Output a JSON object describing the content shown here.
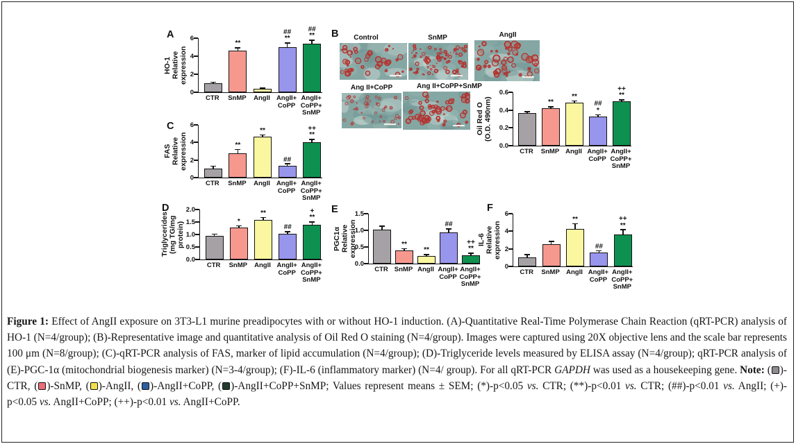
{
  "panel_letters": {
    "A": "A",
    "B": "B",
    "C": "C",
    "D": "D",
    "E": "E",
    "F": "F"
  },
  "colors": {
    "bar_fill": [
      "#a5a1a5",
      "#f7988f",
      "#fbf7a0",
      "#9795ec",
      "#0e9150"
    ],
    "bar_border": "#111111",
    "axis": "#111111",
    "micro_bg": "#85a7a4",
    "micro_mottle_light": "#9cb9b4",
    "micro_mottle_dark": "#6d9391",
    "micro_highlight": "#d8e4e0",
    "droplet": "#b23230",
    "scale_bar": "#f2f4f0",
    "frame_border": "#222222",
    "note_swatches": {
      "ctr": "#8f8b8f",
      "snmp": "#ec6d79",
      "angii": "#f2e04c",
      "angii_copp": "#2d5f9e",
      "angii_copp_snmp": "#233b2f"
    }
  },
  "panelB_images": [
    {
      "label": "Control",
      "droplets": 40,
      "size": "medium"
    },
    {
      "label": "SnMP",
      "droplets": 85,
      "size": "small"
    },
    {
      "label": "AngII",
      "droplets": 48,
      "size": "large"
    },
    {
      "label": "Ang II+CoPP",
      "droplets": 42,
      "size": "small",
      "faint": true
    },
    {
      "label": "Ang II+CoPP+SnMP",
      "droplets": 55,
      "size": "medium"
    }
  ],
  "chart_data": [
    {
      "id": "A",
      "type": "bar",
      "title": "",
      "ylabel_lines": [
        "HO-1",
        "Relative expression"
      ],
      "ylim": [
        0,
        6
      ],
      "yticks": [
        "0",
        "2",
        "4",
        "6"
      ],
      "categories": [
        [
          "CTR"
        ],
        [
          "SnMP"
        ],
        [
          "AngII"
        ],
        [
          "AngII+",
          "CoPP"
        ],
        [
          "AngII+",
          "CoPP+",
          "SnMP"
        ]
      ],
      "values": [
        1.0,
        4.6,
        0.35,
        5.0,
        5.35
      ],
      "errors": [
        0.05,
        0.25,
        0.05,
        0.4,
        0.35
      ],
      "annotations": [
        [],
        [
          "**"
        ],
        [],
        [
          "##",
          "**"
        ],
        [
          "##",
          "**"
        ]
      ]
    },
    {
      "id": "B",
      "type": "bar",
      "title": "",
      "ylabel_lines": [
        "Oil Red O",
        "(O.D. 490nm)"
      ],
      "ylim": [
        0,
        0.6
      ],
      "yticks": [
        "0.0",
        "0.2",
        "0.4",
        "0.6"
      ],
      "categories": [
        [
          "CTR"
        ],
        [
          "SnMP"
        ],
        [
          "AngII"
        ],
        [
          "AngII+",
          "CoPP"
        ],
        [
          "AngII+",
          "CoPP+",
          "SnMP"
        ]
      ],
      "values": [
        0.37,
        0.42,
        0.48,
        0.33,
        0.5
      ],
      "errors": [
        0.008,
        0.012,
        0.015,
        0.012,
        0.01
      ],
      "annotations": [
        [],
        [
          "**"
        ],
        [
          "**"
        ],
        [
          "##",
          "*"
        ],
        [
          "++",
          "**"
        ]
      ]
    },
    {
      "id": "C",
      "type": "bar",
      "title": "",
      "ylabel_lines": [
        "FAS",
        "Relative expression"
      ],
      "ylim": [
        0,
        6
      ],
      "yticks": [
        "0",
        "2",
        "4",
        "6"
      ],
      "categories": [
        [
          "CTR"
        ],
        [
          "SnMP"
        ],
        [
          "AngII"
        ],
        [
          "AngII+",
          "CoPP"
        ],
        [
          "AngII+",
          "CoPP+",
          "SnMP"
        ]
      ],
      "values": [
        1.05,
        2.8,
        4.65,
        1.35,
        4.0
      ],
      "errors": [
        0.18,
        0.35,
        0.15,
        0.15,
        0.3
      ],
      "annotations": [
        [],
        [
          "**"
        ],
        [
          "**"
        ],
        [
          "##"
        ],
        [
          "++",
          "**"
        ]
      ]
    },
    {
      "id": "D",
      "type": "bar",
      "title": "",
      "ylabel_lines": [
        "Triglycerides",
        "(mg TG/mg protein)"
      ],
      "ylim": [
        0,
        2
      ],
      "yticks": [
        "0.0",
        "0.5",
        "1.0",
        "1.5",
        "2.0"
      ],
      "categories": [
        [
          "CTR"
        ],
        [
          "SnMP"
        ],
        [
          "AngII"
        ],
        [
          "AngII+",
          "CoPP"
        ],
        [
          "AngII+",
          "CoPP+",
          "SnMP"
        ]
      ],
      "values": [
        0.95,
        1.28,
        1.58,
        1.04,
        1.38
      ],
      "errors": [
        0.04,
        0.05,
        0.08,
        0.05,
        0.1
      ],
      "annotations": [
        [],
        [
          "*"
        ],
        [
          "**"
        ],
        [
          "##"
        ],
        [
          "+",
          "**"
        ]
      ]
    },
    {
      "id": "E",
      "type": "bar",
      "title": "",
      "ylabel_lines": [
        "PGC1α",
        "Relative expression"
      ],
      "ylim": [
        0,
        1.5
      ],
      "yticks": [
        "0.0",
        "0.5",
        "1.0",
        "1.5"
      ],
      "categories": [
        [
          "CTR"
        ],
        [
          "SnMP"
        ],
        [
          "AngII"
        ],
        [
          "AngII+",
          "CoPP"
        ],
        [
          "AngII+",
          "CoPP+",
          "SnMP"
        ]
      ],
      "values": [
        1.02,
        0.4,
        0.22,
        0.93,
        0.25
      ],
      "errors": [
        0.09,
        0.03,
        0.04,
        0.1,
        0.05
      ],
      "annotations": [
        [],
        [
          "**"
        ],
        [
          "**"
        ],
        [
          "##"
        ],
        [
          "++",
          "**"
        ]
      ]
    },
    {
      "id": "F",
      "type": "bar",
      "title": "",
      "ylabel_lines": [
        "IL-6",
        "Relative expression"
      ],
      "ylim": [
        0,
        6
      ],
      "yticks": [
        "0",
        "2",
        "4",
        "6"
      ],
      "categories": [
        [
          "CTR"
        ],
        [
          "SnMP"
        ],
        [
          "AngII"
        ],
        [
          "AngII+",
          "CoPP"
        ],
        [
          "AngII+",
          "CoPP+",
          "SnMP"
        ]
      ],
      "values": [
        1.05,
        2.5,
        4.25,
        1.6,
        3.6
      ],
      "errors": [
        0.25,
        0.3,
        0.55,
        0.12,
        0.5
      ],
      "annotations": [
        [],
        [],
        [
          "**"
        ],
        [
          "##"
        ],
        [
          "++",
          "**"
        ]
      ]
    }
  ],
  "figure": {
    "caption_segments": [
      {
        "text": "Figure 1: ",
        "bold": true
      },
      {
        "text": "Effect of AngII exposure on 3T3-L1 murine preadipocytes with or without HO-1 induction. (A)-Quantitative Real-Time Polymerase Chain Reaction (qRT-PCR) analysis of HO-1 (N=4/group); (B)-Representative image and quantitative analysis of Oil Red O staining (N=4/group). Images were captured using 20X objective lens and the scale bar represents 100 μm (N=8/group); (C)-qRT-PCR analysis of FAS, marker of lipid accumulation (N=4/group); (D)-Triglyceride levels measured by ELISA assay (N=4/group); qRT-PCR analysis of (E)-PGC-1α (mitochondrial biogenesis marker) (N=3-4/group); (F)-IL-6 (inflammatory marker) (N=4/ group). For all qRT-PCR "
      },
      {
        "text": "GAPDH",
        "italic": true
      },
      {
        "text": " was used as a housekeeping gene. "
      },
      {
        "text": "Note:",
        "bold": true
      },
      {
        "text": " ("
      },
      {
        "swatch": "ctr"
      },
      {
        "text": ")-CTR, ("
      },
      {
        "swatch": "snmp"
      },
      {
        "text": ")-SnMP, ("
      },
      {
        "swatch": "angii"
      },
      {
        "text": ")-AngII, ("
      },
      {
        "swatch": "angii_copp"
      },
      {
        "text": ")-AngII+CoPP, ("
      },
      {
        "swatch": "angii_copp_snmp"
      },
      {
        "text": ")-AngII+CoPP+SnMP; Values represent means ± SEM; (*)-p<0.05 "
      },
      {
        "text": "vs.",
        "italic": true
      },
      {
        "text": " CTR; (**)-p<0.01 "
      },
      {
        "text": "vs.",
        "italic": true
      },
      {
        "text": " CTR; (##)-p<0.01 "
      },
      {
        "text": "vs.",
        "italic": true
      },
      {
        "text": " AngII; (+)-p<0.05 "
      },
      {
        "text": "vs.",
        "italic": true
      },
      {
        "text": " AngII+CoPP; (++)-p<0.01 "
      },
      {
        "text": "vs.",
        "italic": true
      },
      {
        "text": " AngII+CoPP."
      }
    ]
  }
}
